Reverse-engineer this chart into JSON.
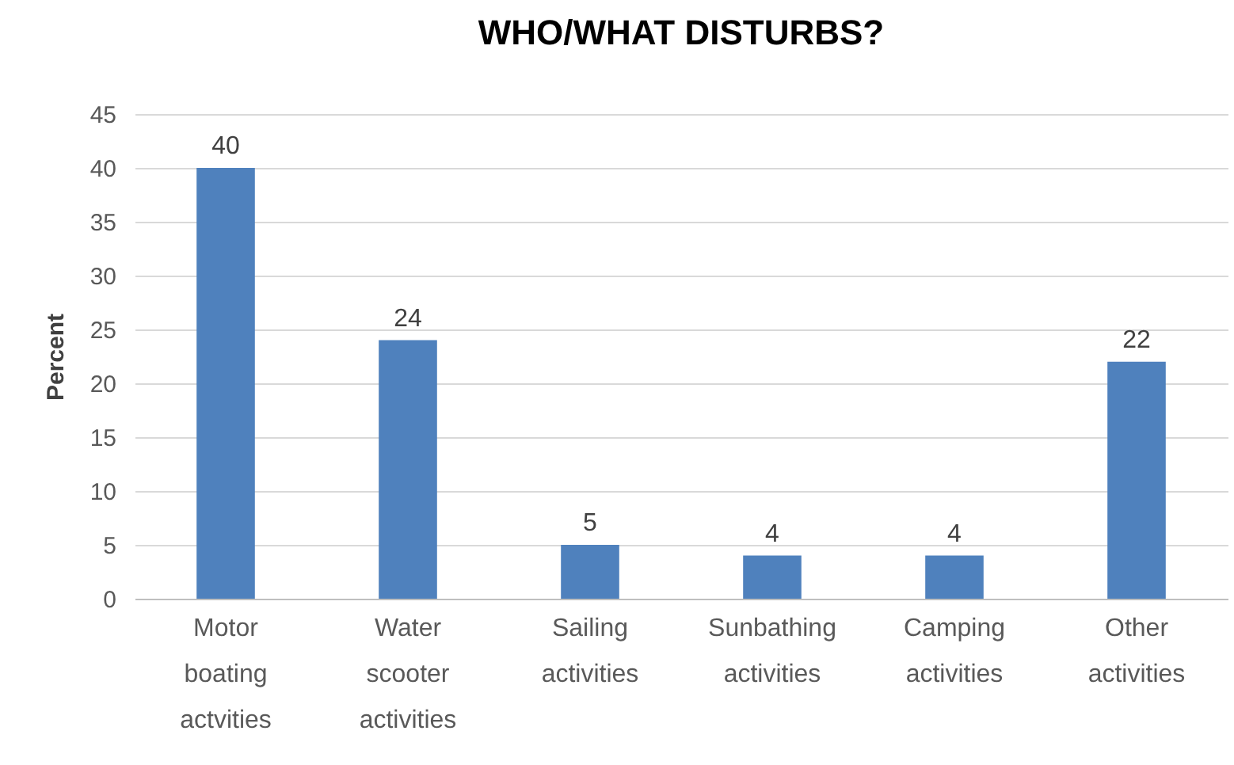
{
  "chart_data": {
    "type": "bar",
    "title": "WHO/WHAT DISTURBS?",
    "ylabel": "Percent",
    "categories": [
      "Motor boating actvities",
      "Water scooter activities",
      "Sailing activities",
      "Sunbathing activities",
      "Camping activities",
      "Other activities"
    ],
    "values": [
      40,
      24,
      5,
      4,
      4,
      22
    ],
    "color": "#4f81bd",
    "ylim": [
      0,
      45
    ],
    "yticks": [
      0,
      5,
      10,
      15,
      20,
      25,
      30,
      35,
      40,
      45
    ],
    "grid": "y",
    "data_labels": true
  }
}
